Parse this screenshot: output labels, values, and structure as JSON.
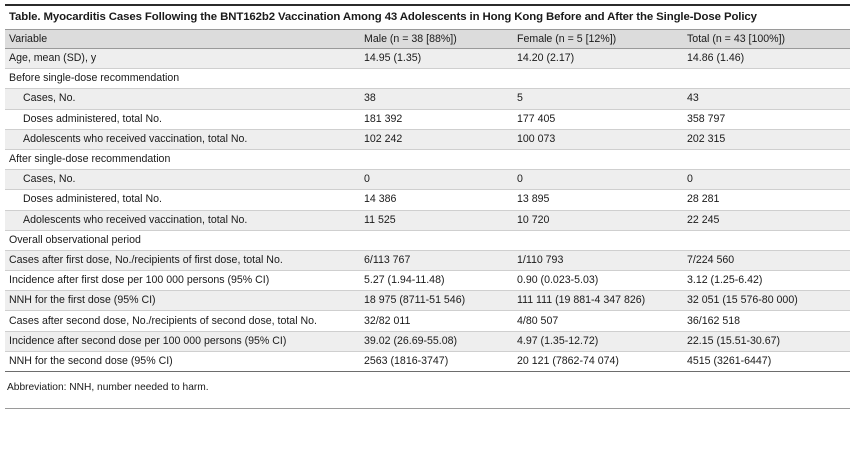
{
  "title": "Table. Myocarditis Cases Following the BNT162b2 Vaccination Among 43 Adolescents in Hong Kong Before and After the Single-Dose Policy",
  "columns": [
    "Variable",
    "Male (n = 38 [88%])",
    "Female (n = 5 [12%])",
    "Total (n = 43 [100%])"
  ],
  "rows": [
    {
      "type": "data",
      "cells": [
        "Age, mean (SD), y",
        "14.95 (1.35)",
        "14.20 (2.17)",
        "14.86 (1.46)"
      ]
    },
    {
      "type": "section",
      "cells": [
        "Before single-dose recommendation",
        "",
        "",
        ""
      ]
    },
    {
      "type": "sub",
      "cells": [
        "Cases, No.",
        "38",
        "5",
        "43"
      ]
    },
    {
      "type": "sub",
      "cells": [
        "Doses administered, total No.",
        "181 392",
        "177 405",
        "358 797"
      ]
    },
    {
      "type": "sub",
      "cells": [
        "Adolescents who received vaccination, total No.",
        "102 242",
        "100 073",
        "202 315"
      ]
    },
    {
      "type": "section",
      "cells": [
        "After single-dose recommendation",
        "",
        "",
        ""
      ]
    },
    {
      "type": "sub",
      "cells": [
        "Cases, No.",
        "0",
        "0",
        "0"
      ]
    },
    {
      "type": "sub",
      "cells": [
        "Doses administered, total No.",
        "14 386",
        "13 895",
        "28 281"
      ]
    },
    {
      "type": "sub",
      "cells": [
        "Adolescents who received vaccination, total No.",
        "11 525",
        "10 720",
        "22 245"
      ]
    },
    {
      "type": "section",
      "cells": [
        "Overall observational period",
        "",
        "",
        ""
      ]
    },
    {
      "type": "data",
      "cells": [
        "Cases after first dose, No./recipients of first dose, total No.",
        "6/113 767",
        "1/110 793",
        "7/224 560"
      ]
    },
    {
      "type": "data",
      "cells": [
        "Incidence after first dose per 100 000 persons (95% CI)",
        "5.27 (1.94-11.48)",
        "0.90 (0.023-5.03)",
        "3.12 (1.25-6.42)"
      ]
    },
    {
      "type": "data",
      "cells": [
        "NNH for the first dose (95% CI)",
        "18 975 (8711-51 546)",
        "111 111 (19 881-4 347 826)",
        "32 051 (15 576-80 000)"
      ]
    },
    {
      "type": "data",
      "cells": [
        "Cases after second dose, No./recipients of second dose, total No.",
        "32/82 011",
        "4/80 507",
        "36/162 518"
      ]
    },
    {
      "type": "data",
      "cells": [
        "Incidence after second dose per 100 000 persons (95% CI)",
        "39.02 (26.69-55.08)",
        "4.97 (1.35-12.72)",
        "22.15 (15.51-30.67)"
      ]
    },
    {
      "type": "data",
      "cells": [
        "NNH for the second dose (95% CI)",
        "2563 (1816-3747)",
        "20 121 (7862-74 074)",
        "4515 (3261-6447)"
      ]
    }
  ],
  "footnote": "Abbreviation: NNH, number needed to harm."
}
